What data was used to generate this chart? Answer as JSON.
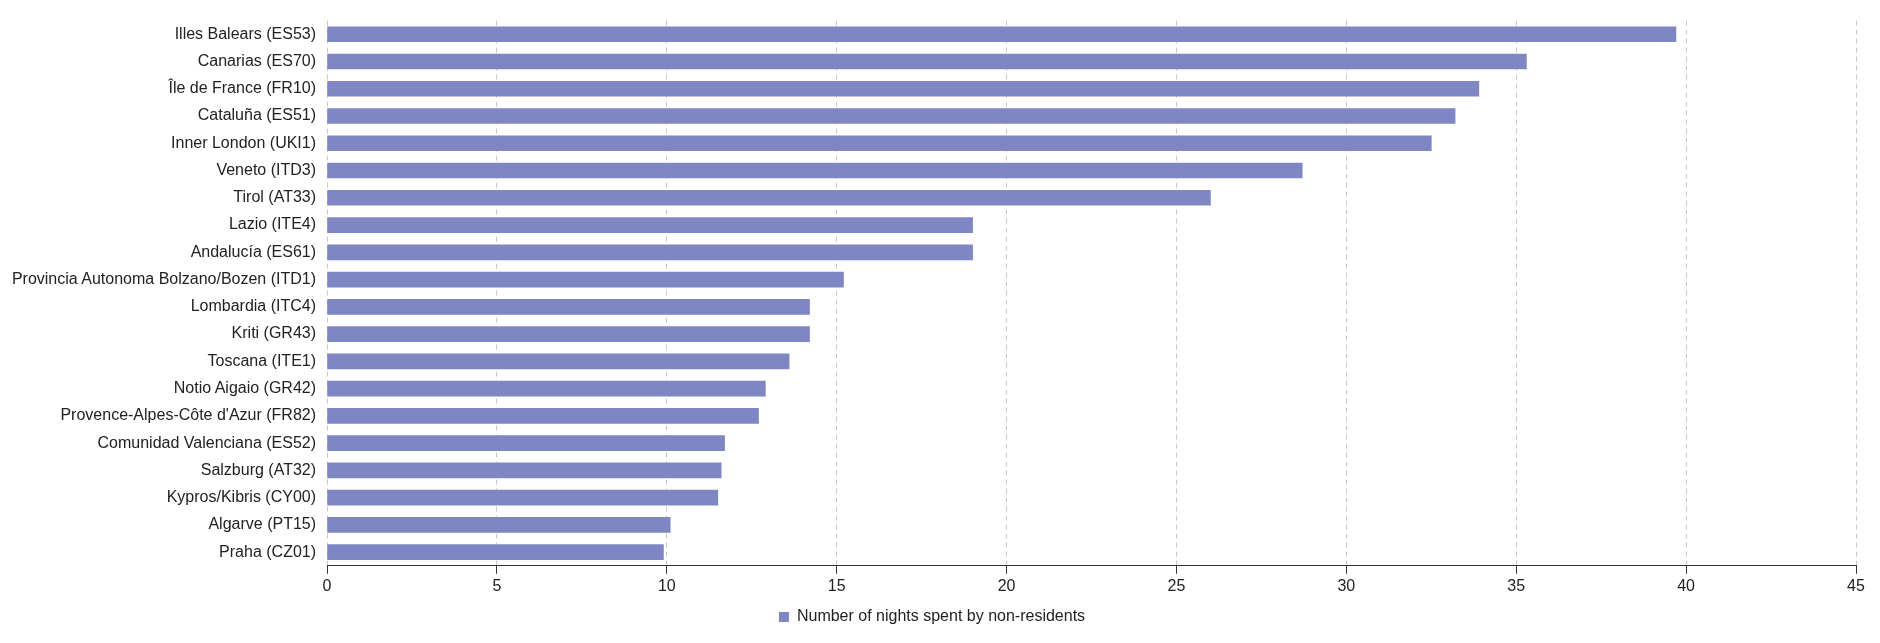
{
  "chart_data": {
    "type": "bar",
    "orientation": "horizontal",
    "categories": [
      "Illes Balears (ES53)",
      "Canarias (ES70)",
      "Île de France (FR10)",
      "Cataluña (ES51)",
      "Inner London (UKI1)",
      "Veneto (ITD3)",
      "Tirol (AT33)",
      "Lazio (ITE4)",
      "Andalucía (ES61)",
      "Provincia Autonoma Bolzano/Bozen (ITD1)",
      "Lombardia (ITC4)",
      "Kriti (GR43)",
      "Toscana (ITE1)",
      "Notio Aigaio (GR42)",
      "Provence-Alpes-Côte d'Azur (FR82)",
      "Comunidad Valenciana (ES52)",
      "Salzburg (AT32)",
      "Kypros/Kibris (CY00)",
      "Algarve (PT15)",
      "Praha (CZ01)"
    ],
    "series": [
      {
        "name": "Number of nights spent by non-residents",
        "color": "#7f86c4",
        "values": [
          39.7,
          35.3,
          33.9,
          33.2,
          32.5,
          28.7,
          26.0,
          19.0,
          19.0,
          15.2,
          14.2,
          14.2,
          13.6,
          12.9,
          12.7,
          11.7,
          11.6,
          11.5,
          10.1,
          9.9
        ]
      }
    ],
    "xlim": [
      0,
      45
    ],
    "xticks": [
      0,
      5,
      10,
      15,
      20,
      25,
      30,
      35,
      40,
      45
    ],
    "grid": "x",
    "legend": "bottom"
  }
}
